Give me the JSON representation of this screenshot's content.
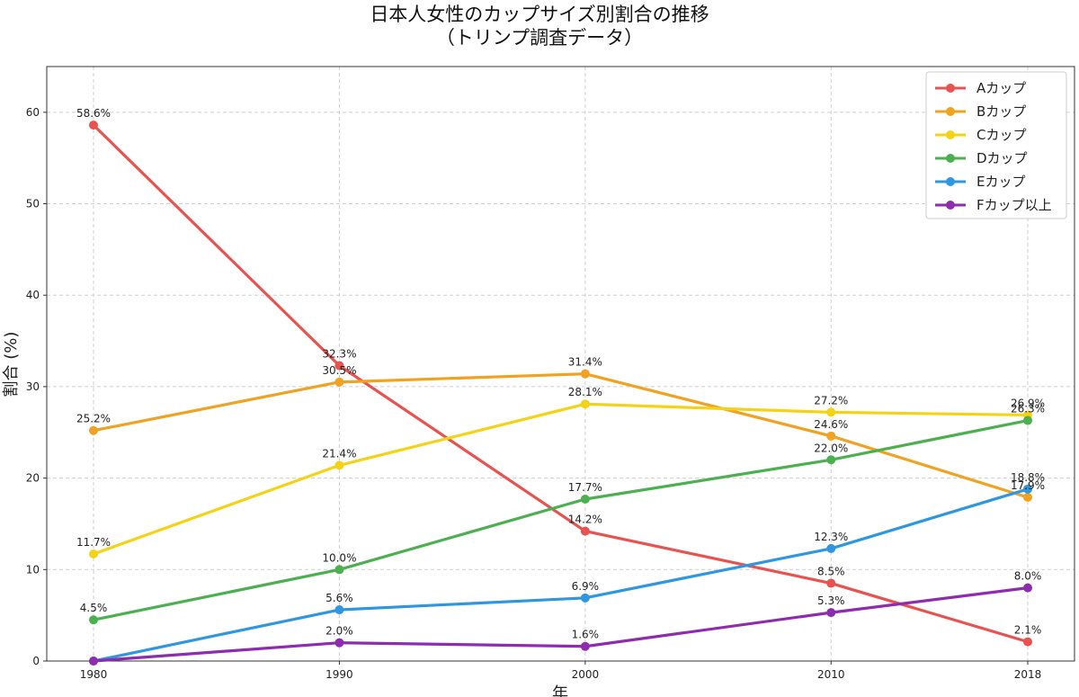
{
  "chart_data": {
    "type": "line",
    "title": "日本人女性のカップサイズ別割合の推移",
    "subtitle": "（トリンプ調査データ）",
    "xlabel": "年",
    "ylabel": "割合 (%)",
    "x": [
      1980,
      1990,
      2000,
      2010,
      2018
    ],
    "x_tick_labels": [
      "1980",
      "1990",
      "2000",
      "2010",
      "2018"
    ],
    "ylim": [
      0,
      65
    ],
    "y_ticks": [
      0,
      10,
      20,
      30,
      40,
      50,
      60
    ],
    "grid": true,
    "legend_position": "top-right",
    "series": [
      {
        "name": "Aカップ",
        "color": "#e8524f",
        "values": [
          58.6,
          32.3,
          14.2,
          8.5,
          2.1
        ],
        "labels": [
          "58.6%",
          "32.3%",
          "14.2%",
          "8.5%",
          "2.1%"
        ]
      },
      {
        "name": "Bカップ",
        "color": "#f0a222",
        "values": [
          25.2,
          30.5,
          31.4,
          24.6,
          17.9
        ],
        "labels": [
          "25.2%",
          "30.5%",
          "31.4%",
          "24.6%",
          "17.9%"
        ]
      },
      {
        "name": "Cカップ",
        "color": "#f4d316",
        "values": [
          11.7,
          21.4,
          28.1,
          27.2,
          26.9
        ],
        "labels": [
          "11.7%",
          "21.4%",
          "28.1%",
          "27.2%",
          "26.9%"
        ]
      },
      {
        "name": "Dカップ",
        "color": "#4caf50",
        "values": [
          4.5,
          10.0,
          17.7,
          22.0,
          26.3
        ],
        "labels": [
          "4.5%",
          "10.0%",
          "17.7%",
          "22.0%",
          "26.3%"
        ]
      },
      {
        "name": "Eカップ",
        "color": "#2f97e0",
        "values": [
          0,
          5.6,
          6.9,
          12.3,
          18.8
        ],
        "labels": [
          "",
          "5.6%",
          "6.9%",
          "12.3%",
          "18.8%"
        ]
      },
      {
        "name": "Fカップ以上",
        "color": "#8e2cb0",
        "values": [
          0,
          2.0,
          1.6,
          5.3,
          8.0
        ],
        "labels": [
          "",
          "2.0%",
          "1.6%",
          "5.3%",
          "8.0%"
        ]
      }
    ]
  }
}
